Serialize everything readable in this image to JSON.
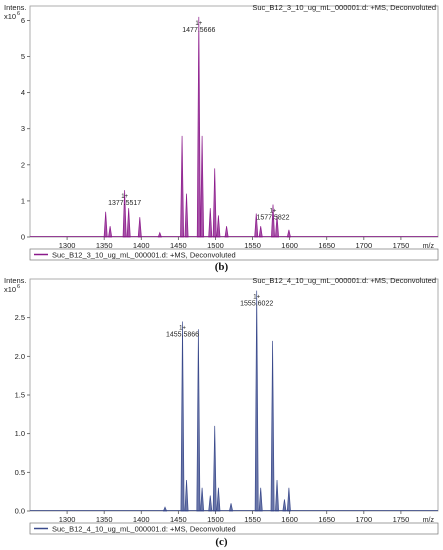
{
  "chart_data": [
    {
      "type": "line",
      "panel": "(b)",
      "title": "Suc_B12_3_10_ug_mL_000001.d: +MS, Deconvoluted",
      "ylabel": "Intens.",
      "y_exponent": "x10",
      "y_exponent_power": "6",
      "xlabel": "m/z",
      "xlim": [
        1250,
        1800
      ],
      "ylim": [
        0,
        6.4
      ],
      "x_ticks": [
        "1300",
        "1350",
        "1400",
        "1450",
        "1500",
        "1550",
        "1600",
        "1650",
        "1700",
        "1750"
      ],
      "y_ticks": [
        "0",
        "1",
        "2",
        "3",
        "4",
        "5",
        "6"
      ],
      "color": "#8b1a8b",
      "legend": "Suc_B12_3_10_ug_mL_000001.d: +MS, Deconvoluted",
      "legend_position": "bottom-left",
      "peaks": [
        {
          "x": 1352,
          "y": 0.7
        },
        {
          "x": 1358,
          "y": 0.3
        },
        {
          "x": 1377.55,
          "y": 1.3
        },
        {
          "x": 1383,
          "y": 0.8
        },
        {
          "x": 1398,
          "y": 0.55
        },
        {
          "x": 1425,
          "y": 0.12
        },
        {
          "x": 1455,
          "y": 2.8
        },
        {
          "x": 1461,
          "y": 1.2
        },
        {
          "x": 1477.57,
          "y": 6.1
        },
        {
          "x": 1482,
          "y": 2.8
        },
        {
          "x": 1493,
          "y": 0.8
        },
        {
          "x": 1499,
          "y": 1.9
        },
        {
          "x": 1504,
          "y": 0.6
        },
        {
          "x": 1515,
          "y": 0.3
        },
        {
          "x": 1555,
          "y": 0.65
        },
        {
          "x": 1561,
          "y": 0.3
        },
        {
          "x": 1577.58,
          "y": 0.9
        },
        {
          "x": 1583,
          "y": 0.6
        },
        {
          "x": 1599,
          "y": 0.2
        }
      ],
      "annotations": [
        {
          "x": 1377.55,
          "y": 1.3,
          "charge": "1+",
          "text": "1377.5517"
        },
        {
          "x": 1477.57,
          "y": 6.1,
          "charge": "1+",
          "text": "1477.5666"
        },
        {
          "x": 1577.58,
          "y": 0.9,
          "charge": "1+",
          "text": "1577.5822"
        }
      ]
    },
    {
      "type": "line",
      "panel": "(c)",
      "title": "Suc_B12_4_10_ug_mL_000001.d: +MS, Deconvoluted",
      "ylabel": "Intens.",
      "y_exponent": "x10",
      "y_exponent_power": "6",
      "xlabel": "m/z",
      "xlim": [
        1250,
        1800
      ],
      "ylim": [
        0,
        3.0
      ],
      "x_ticks": [
        "1300",
        "1350",
        "1400",
        "1450",
        "1500",
        "1550",
        "1600",
        "1650",
        "1700",
        "1750"
      ],
      "y_ticks": [
        "0.0",
        "0.5",
        "1.0",
        "1.5",
        "2.0",
        "2.5"
      ],
      "color": "#3a4a8c",
      "legend": "Suc_B12_4_10_ug_mL_000001.d: +MS, Deconvoluted",
      "legend_position": "bottom-left",
      "peaks": [
        {
          "x": 1432,
          "y": 0.05
        },
        {
          "x": 1455.59,
          "y": 2.45
        },
        {
          "x": 1461,
          "y": 0.4
        },
        {
          "x": 1477,
          "y": 2.35
        },
        {
          "x": 1482,
          "y": 0.3
        },
        {
          "x": 1493,
          "y": 0.2
        },
        {
          "x": 1499,
          "y": 1.1
        },
        {
          "x": 1504,
          "y": 0.3
        },
        {
          "x": 1521,
          "y": 0.1
        },
        {
          "x": 1555.6,
          "y": 2.85
        },
        {
          "x": 1561,
          "y": 0.3
        },
        {
          "x": 1577,
          "y": 2.2
        },
        {
          "x": 1583,
          "y": 0.4
        },
        {
          "x": 1593,
          "y": 0.15
        },
        {
          "x": 1599,
          "y": 0.3
        }
      ],
      "annotations": [
        {
          "x": 1455.59,
          "y": 2.45,
          "charge": "1+",
          "text": "1455.5866"
        },
        {
          "x": 1555.6,
          "y": 2.85,
          "charge": "1+",
          "text": "1555.6022"
        }
      ]
    }
  ]
}
